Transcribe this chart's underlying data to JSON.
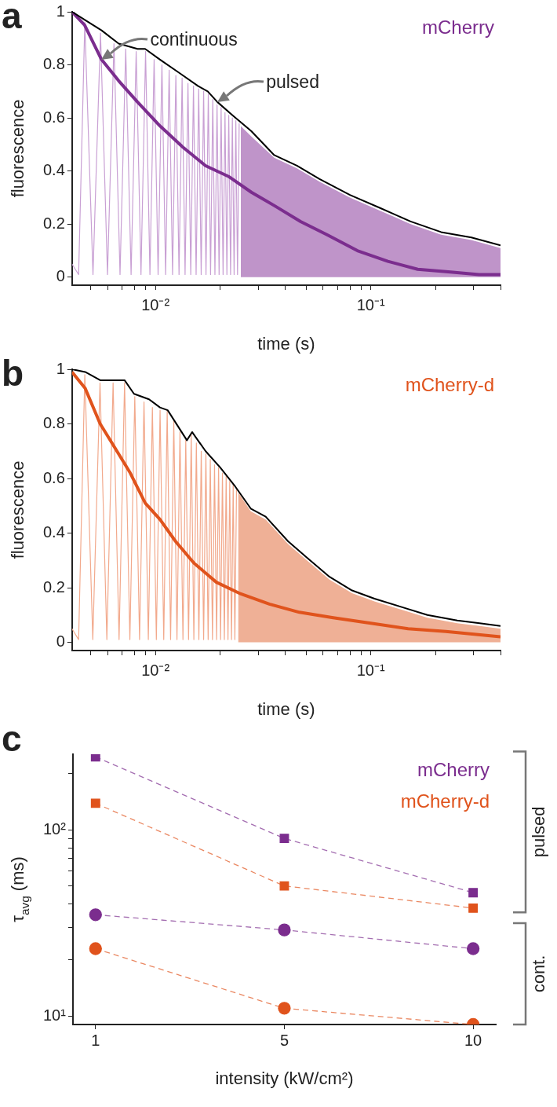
{
  "chart_data": [
    {
      "type": "line",
      "title": "a",
      "xlabel": "time (s)",
      "ylabel": "fluorescence",
      "log": "x",
      "legend": "top right",
      "xlim": [
        0.0041,
        0.4
      ],
      "ylim": [
        -0.03,
        1
      ],
      "xticks": [
        {
          "value": 0.005,
          "label": null
        },
        {
          "value": 0.006,
          "label": null
        },
        {
          "value": 0.007,
          "label": null
        },
        {
          "value": 0.008,
          "label": null
        },
        {
          "value": 0.009,
          "label": null
        },
        {
          "value": 0.01,
          "label": "10⁻²"
        },
        {
          "value": 0.02,
          "label": null
        },
        {
          "value": 0.03,
          "label": null
        },
        {
          "value": 0.04,
          "label": null
        },
        {
          "value": 0.05,
          "label": null
        },
        {
          "value": 0.06,
          "label": null
        },
        {
          "value": 0.07,
          "label": null
        },
        {
          "value": 0.08,
          "label": null
        },
        {
          "value": 0.09,
          "label": null
        },
        {
          "value": 0.1,
          "label": "10⁻¹"
        },
        {
          "value": 0.2,
          "label": null
        },
        {
          "value": 0.3,
          "label": null
        },
        {
          "value": 0.4,
          "label": null
        }
      ],
      "yticks": [
        0,
        0.2,
        0.4,
        0.6,
        0.8,
        1
      ],
      "annotations": [
        {
          "text": "continuous",
          "x": 0.00562,
          "y": 0.82
        },
        {
          "text": "pulsed",
          "x": 0.0194,
          "y": 0.66
        }
      ],
      "series": [
        {
          "color": "#c9a0d4",
          "x": [
            0.0041,
            0.0044,
            0.0047,
            0.00513,
            0.00556,
            0.00599,
            0.00642,
            0.00685,
            0.00728,
            0.00771,
            0.00814,
            0.00857,
            0.009,
            0.00943,
            0.00986,
            0.01029,
            0.01072,
            0.01115,
            0.01158,
            0.01201,
            0.01244,
            0.01287,
            0.0133,
            0.01373,
            0.01416,
            0.01459,
            0.01502,
            0.01545,
            0.01588,
            0.01631,
            0.01674,
            0.01717,
            0.0176,
            0.01803,
            0.01846,
            0.01889,
            0.01932,
            0.01975,
            0.02018,
            0.02061,
            0.02104,
            0.02147,
            0.0219,
            0.02233,
            0.02276,
            0.02319,
            0.02362,
            0.02405,
            0.02448
          ],
          "values": [
            0.05,
            0.01,
            0.96,
            0.01,
            0.92,
            0.01,
            0.88,
            0.01,
            0.86,
            0.01,
            0.85,
            0.01,
            0.85,
            0.01,
            0.82,
            0.01,
            0.8,
            0.01,
            0.78,
            0.01,
            0.76,
            0.01,
            0.75,
            0.01,
            0.73,
            0.01,
            0.72,
            0.01,
            0.71,
            0.01,
            0.7,
            0.01,
            0.69,
            0.01,
            0.67,
            0.01,
            0.65,
            0.01,
            0.64,
            0.01,
            0.62,
            0.01,
            0.61,
            0.01,
            0.6,
            0.01,
            0.59,
            0.01,
            0.58
          ]
        },
        {
          "type": "area",
          "color": "#bf94c9",
          "x": [
            0.0249,
            0.0279,
            0.0356,
            0.0454,
            0.0578,
            0.08,
            0.111,
            0.153,
            0.212,
            0.293,
            0.4
          ],
          "values": [
            0.57,
            0.53,
            0.45,
            0.41,
            0.36,
            0.3,
            0.25,
            0.2,
            0.16,
            0.14,
            0.11
          ]
        },
        {
          "name": "mCherry",
          "color": "#7b2d8e",
          "x": [
            0.0041,
            0.00469,
            0.00562,
            0.00675,
            0.00826,
            0.0105,
            0.0134,
            0.0171,
            0.0218,
            0.0279,
            0.0356,
            0.0472,
            0.0626,
            0.0866,
            0.12,
            0.165,
            0.229,
            0.318,
            0.4
          ],
          "values": [
            1,
            0.95,
            0.82,
            0.74,
            0.66,
            0.57,
            0.49,
            0.42,
            0.38,
            0.32,
            0.27,
            0.21,
            0.16,
            0.1,
            0.06,
            0.03,
            0.02,
            0.01,
            0.01
          ]
        },
        {
          "color": "#000000",
          "x": [
            0.0041,
            0.00469,
            0.00562,
            0.00675,
            0.00826,
            0.00896,
            0.0105,
            0.0129,
            0.0158,
            0.0175,
            0.0194,
            0.0228,
            0.0279,
            0.0356,
            0.0454,
            0.0578,
            0.08,
            0.111,
            0.153,
            0.212,
            0.293,
            0.4
          ],
          "values": [
            1,
            0.97,
            0.93,
            0.88,
            0.86,
            0.86,
            0.82,
            0.77,
            0.72,
            0.7,
            0.66,
            0.61,
            0.55,
            0.46,
            0.42,
            0.37,
            0.31,
            0.26,
            0.21,
            0.17,
            0.15,
            0.12
          ]
        }
      ]
    },
    {
      "type": "line",
      "title": "b",
      "xlabel": "time (s)",
      "ylabel": "fluorescence",
      "log": "x",
      "legend": "top right",
      "xlim": [
        0.0041,
        0.4
      ],
      "ylim": [
        -0.03,
        1
      ],
      "xticks": [
        {
          "value": 0.005,
          "label": null
        },
        {
          "value": 0.006,
          "label": null
        },
        {
          "value": 0.007,
          "label": null
        },
        {
          "value": 0.008,
          "label": null
        },
        {
          "value": 0.009,
          "label": null
        },
        {
          "value": 0.01,
          "label": "10⁻²"
        },
        {
          "value": 0.02,
          "label": null
        },
        {
          "value": 0.03,
          "label": null
        },
        {
          "value": 0.04,
          "label": null
        },
        {
          "value": 0.05,
          "label": null
        },
        {
          "value": 0.06,
          "label": null
        },
        {
          "value": 0.07,
          "label": null
        },
        {
          "value": 0.08,
          "label": null
        },
        {
          "value": 0.09,
          "label": null
        },
        {
          "value": 0.1,
          "label": "10⁻¹"
        },
        {
          "value": 0.2,
          "label": null
        },
        {
          "value": 0.3,
          "label": null
        },
        {
          "value": 0.4,
          "label": null
        }
      ],
      "yticks": [
        0,
        0.2,
        0.4,
        0.6,
        0.8,
        1
      ],
      "series": [
        {
          "color": "#f2a98c",
          "x": [
            0.0041,
            0.0044,
            0.0047,
            0.00512,
            0.00553,
            0.00595,
            0.00636,
            0.00678,
            0.00719,
            0.00761,
            0.00802,
            0.00844,
            0.00885,
            0.00927,
            0.00968,
            0.0101,
            0.01051,
            0.01093,
            0.01134,
            0.01176,
            0.01217,
            0.01259,
            0.013,
            0.01342,
            0.01383,
            0.01425,
            0.01466,
            0.01508,
            0.01549,
            0.01591,
            0.01632,
            0.01674,
            0.01715,
            0.01757,
            0.01798,
            0.0184,
            0.01881,
            0.01923,
            0.01964,
            0.02006,
            0.02047,
            0.02089,
            0.0213,
            0.02172,
            0.02213,
            0.02255,
            0.02296,
            0.02338,
            0.02379
          ],
          "values": [
            0.05,
            0.01,
            0.98,
            0.01,
            0.95,
            0.01,
            0.95,
            0.01,
            0.95,
            0.01,
            0.9,
            0.01,
            0.88,
            0.01,
            0.86,
            0.01,
            0.85,
            0.01,
            0.85,
            0.01,
            0.81,
            0.01,
            0.77,
            0.01,
            0.74,
            0.01,
            0.76,
            0.01,
            0.73,
            0.01,
            0.7,
            0.01,
            0.69,
            0.01,
            0.67,
            0.01,
            0.65,
            0.01,
            0.64,
            0.01,
            0.62,
            0.01,
            0.61,
            0.01,
            0.59,
            0.01,
            0.58,
            0.01,
            0.56
          ]
        },
        {
          "type": "area",
          "color": "#efb096",
          "x": [
            0.0242,
            0.0277,
            0.0325,
            0.0413,
            0.0505,
            0.0643,
            0.0818,
            0.104,
            0.138,
            0.183,
            0.252,
            0.32,
            0.4
          ],
          "values": [
            0.55,
            0.48,
            0.45,
            0.36,
            0.3,
            0.23,
            0.18,
            0.15,
            0.12,
            0.09,
            0.07,
            0.06,
            0.05
          ]
        },
        {
          "name": "mCherry-d",
          "color": "#e0531c",
          "x": [
            0.0041,
            0.00472,
            0.00554,
            0.00651,
            0.00764,
            0.00897,
            0.0105,
            0.0124,
            0.0151,
            0.0192,
            0.0245,
            0.0338,
            0.0466,
            0.0669,
            0.1,
            0.149,
            0.223,
            0.4
          ],
          "values": [
            0.99,
            0.93,
            0.8,
            0.71,
            0.62,
            0.51,
            0.45,
            0.37,
            0.29,
            0.22,
            0.18,
            0.14,
            0.11,
            0.09,
            0.07,
            0.05,
            0.04,
            0.02
          ]
        },
        {
          "color": "#000000",
          "x": [
            0.0041,
            0.00472,
            0.00554,
            0.00719,
            0.00795,
            0.00934,
            0.0105,
            0.0114,
            0.014,
            0.0148,
            0.0171,
            0.02,
            0.0235,
            0.0277,
            0.0325,
            0.0413,
            0.0505,
            0.0643,
            0.0818,
            0.104,
            0.138,
            0.183,
            0.252,
            0.32,
            0.4
          ],
          "values": [
            1,
            0.99,
            0.96,
            0.96,
            0.91,
            0.89,
            0.86,
            0.85,
            0.74,
            0.77,
            0.7,
            0.64,
            0.57,
            0.49,
            0.46,
            0.37,
            0.31,
            0.24,
            0.19,
            0.16,
            0.13,
            0.1,
            0.08,
            0.07,
            0.06
          ]
        }
      ]
    },
    {
      "type": "line",
      "title": "c",
      "xlabel": "intensity (kW/cm²)",
      "ylabel": "τ$_{avg}$ (ms)",
      "log": true,
      "legend": "top right",
      "line_style": "dashed",
      "categories": [
        "1",
        "5",
        "10"
      ],
      "ylim": [
        9,
        255
      ],
      "yticks": [
        {
          "value": 10,
          "label": "10¹"
        },
        {
          "value": 20,
          "label": null
        },
        {
          "value": 30,
          "label": null
        },
        {
          "value": 40,
          "label": null
        },
        {
          "value": 50,
          "label": null
        },
        {
          "value": 60,
          "label": null
        },
        {
          "value": 70,
          "label": null
        },
        {
          "value": 80,
          "label": null
        },
        {
          "value": 90,
          "label": null
        },
        {
          "value": 100,
          "label": "10²"
        },
        {
          "value": 200,
          "label": null
        }
      ],
      "annotations": [
        "pulsed",
        "cont."
      ],
      "series": [
        {
          "name": "mCherry",
          "color": "#7b2d8e",
          "marker": "square",
          "values": [
            247,
            90,
            46
          ]
        },
        {
          "name": "mCherry-d",
          "color": "#e0531c",
          "marker": "square",
          "values": [
            139,
            50,
            38
          ]
        },
        {
          "color": "#7b2d8e",
          "marker": "circle",
          "values": [
            35,
            29,
            23
          ]
        },
        {
          "color": "#e0531c",
          "marker": "circle",
          "values": [
            23,
            11,
            9
          ]
        }
      ]
    }
  ]
}
